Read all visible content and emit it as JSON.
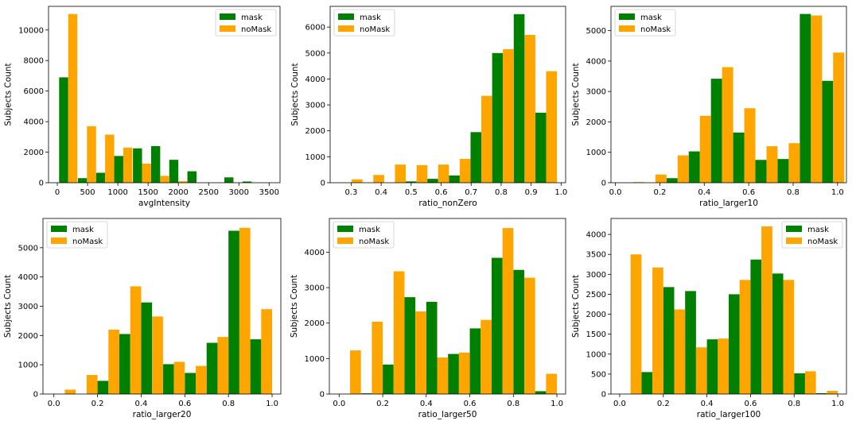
{
  "chart_data": [
    {
      "type": "bar",
      "xlabel": "avgIntensity",
      "ylabel": "Subjects Count",
      "legend_position": "top-right",
      "xlim": [
        -145,
        3680
      ],
      "ylim": [
        0,
        11550
      ],
      "xticks": [
        0,
        500,
        1000,
        1500,
        2000,
        2500,
        3000,
        3500
      ],
      "xtick_labels": [
        "0",
        "500",
        "1000",
        "1500",
        "2000",
        "2500",
        "3000",
        "3500"
      ],
      "yticks": [
        0,
        2000,
        4000,
        6000,
        8000,
        10000
      ],
      "ytick_labels": [
        "0",
        "2000",
        "4000",
        "6000",
        "8000",
        "10000"
      ],
      "bins": [
        [
          30,
          180,
          330
        ],
        [
          340,
          490,
          640
        ],
        [
          640,
          790,
          940
        ],
        [
          940,
          1090,
          1240
        ],
        [
          1250,
          1400,
          1550
        ],
        [
          1550,
          1700,
          1850
        ],
        [
          1850,
          2000,
          2150
        ],
        [
          2150,
          2300,
          2450
        ],
        [
          2450,
          2600,
          2750
        ],
        [
          2760,
          2910,
          3060
        ],
        [
          3060,
          3210,
          3360
        ],
        [
          3370,
          3520,
          3670
        ]
      ],
      "series": [
        {
          "name": "mask",
          "color": "#008000",
          "values": [
            6900,
            300,
            650,
            1750,
            2250,
            2400,
            1500,
            750,
            0,
            350,
            80,
            0
          ]
        },
        {
          "name": "noMask",
          "color": "#ffa500",
          "values": [
            11050,
            3700,
            3150,
            2300,
            1250,
            450,
            100,
            0,
            0,
            0,
            0,
            0
          ]
        }
      ]
    },
    {
      "type": "bar",
      "xlabel": "ratio_nonZero",
      "ylabel": "Subjects Count",
      "legend_position": "top-left",
      "xlim": [
        0.23,
        1.015
      ],
      "ylim": [
        0,
        6800
      ],
      "xticks": [
        0.3,
        0.4,
        0.5,
        0.6,
        0.7,
        0.8,
        0.9,
        1.0
      ],
      "xtick_labels": [
        "0.3",
        "0.4",
        "0.5",
        "0.6",
        "0.7",
        "0.8",
        "0.9",
        "1.0"
      ],
      "yticks": [
        0,
        1000,
        2000,
        3000,
        4000,
        5000,
        6000
      ],
      "ytick_labels": [
        "0",
        "1000",
        "2000",
        "3000",
        "4000",
        "5000",
        "6000"
      ],
      "bins": [
        [
          0.266,
          0.302,
          0.338
        ],
        [
          0.338,
          0.374,
          0.41
        ],
        [
          0.41,
          0.446,
          0.482
        ],
        [
          0.482,
          0.518,
          0.554
        ],
        [
          0.554,
          0.59,
          0.626
        ],
        [
          0.626,
          0.662,
          0.698
        ],
        [
          0.698,
          0.734,
          0.77
        ],
        [
          0.77,
          0.806,
          0.842
        ],
        [
          0.842,
          0.878,
          0.914
        ],
        [
          0.914,
          0.95,
          0.986
        ]
      ],
      "series": [
        {
          "name": "mask",
          "color": "#008000",
          "values": [
            0,
            0,
            0,
            50,
            150,
            280,
            1950,
            5000,
            6500,
            2700
          ]
        },
        {
          "name": "noMask",
          "color": "#ffa500",
          "values": [
            130,
            300,
            700,
            680,
            700,
            920,
            3350,
            5150,
            5700,
            4300
          ]
        }
      ]
    },
    {
      "type": "bar",
      "xlabel": "ratio_larger10",
      "ylabel": "Subjects Count",
      "legend_position": "top-left",
      "xlim": [
        -0.02,
        1.04
      ],
      "ylim": [
        0,
        5800
      ],
      "xticks": [
        0.0,
        0.2,
        0.4,
        0.6,
        0.8,
        1.0
      ],
      "xtick_labels": [
        "0.0",
        "0.2",
        "0.4",
        "0.6",
        "0.8",
        "1.0"
      ],
      "yticks": [
        0,
        1000,
        2000,
        3000,
        4000,
        5000
      ],
      "ytick_labels": [
        "0",
        "1000",
        "2000",
        "3000",
        "4000",
        "5000"
      ],
      "bins": [
        [
          0.03,
          0.08,
          0.13
        ],
        [
          0.13,
          0.18,
          0.23
        ],
        [
          0.23,
          0.28,
          0.33
        ],
        [
          0.33,
          0.38,
          0.43
        ],
        [
          0.43,
          0.48,
          0.53
        ],
        [
          0.53,
          0.58,
          0.63
        ],
        [
          0.63,
          0.68,
          0.73
        ],
        [
          0.73,
          0.78,
          0.83
        ],
        [
          0.83,
          0.88,
          0.93
        ],
        [
          0.93,
          0.98,
          1.03
        ]
      ],
      "series": [
        {
          "name": "mask",
          "color": "#008000",
          "values": [
            0,
            0,
            150,
            1030,
            3420,
            1650,
            750,
            780,
            5550,
            3350
          ]
        },
        {
          "name": "noMask",
          "color": "#ffa500",
          "values": [
            20,
            270,
            900,
            2200,
            3800,
            2450,
            1200,
            1300,
            5500,
            4280
          ]
        }
      ]
    },
    {
      "type": "bar",
      "xlabel": "ratio_larger20",
      "ylabel": "Subjects Count",
      "legend_position": "top-left",
      "xlim": [
        -0.05,
        1.04
      ],
      "ylim": [
        0,
        6000
      ],
      "xticks": [
        0.0,
        0.2,
        0.4,
        0.6,
        0.8,
        1.0
      ],
      "xtick_labels": [
        "0.0",
        "0.2",
        "0.4",
        "0.6",
        "0.8",
        "1.0"
      ],
      "yticks": [
        0,
        1000,
        2000,
        3000,
        4000,
        5000
      ],
      "ytick_labels": [
        "0",
        "1000",
        "2000",
        "3000",
        "4000",
        "5000"
      ],
      "bins": [
        [
          0.0,
          0.05,
          0.1
        ],
        [
          0.1,
          0.15,
          0.2
        ],
        [
          0.2,
          0.25,
          0.3
        ],
        [
          0.3,
          0.35,
          0.4
        ],
        [
          0.4,
          0.45,
          0.5
        ],
        [
          0.5,
          0.55,
          0.6
        ],
        [
          0.6,
          0.65,
          0.7
        ],
        [
          0.7,
          0.75,
          0.8
        ],
        [
          0.8,
          0.85,
          0.9
        ],
        [
          0.9,
          0.95,
          1.0
        ]
      ],
      "series": [
        {
          "name": "mask",
          "color": "#008000",
          "values": [
            0,
            0,
            450,
            2050,
            3130,
            1020,
            720,
            1750,
            5580,
            1870
          ]
        },
        {
          "name": "noMask",
          "color": "#ffa500",
          "values": [
            150,
            650,
            2200,
            3680,
            2650,
            1100,
            960,
            1950,
            5680,
            2900
          ]
        }
      ]
    },
    {
      "type": "bar",
      "xlabel": "ratio_larger50",
      "ylabel": "Subjects Count",
      "legend_position": "top-left",
      "xlim": [
        -0.045,
        1.04
      ],
      "ylim": [
        0,
        4950
      ],
      "xticks": [
        0.0,
        0.2,
        0.4,
        0.6,
        0.8,
        1.0
      ],
      "xtick_labels": [
        "0.0",
        "0.2",
        "0.4",
        "0.6",
        "0.8",
        "1.0"
      ],
      "yticks": [
        0,
        1000,
        2000,
        3000,
        4000
      ],
      "ytick_labels": [
        "0",
        "1000",
        "2000",
        "3000",
        "4000"
      ],
      "bins": [
        [
          0.0,
          0.05,
          0.1
        ],
        [
          0.1,
          0.15,
          0.2
        ],
        [
          0.2,
          0.25,
          0.3
        ],
        [
          0.3,
          0.35,
          0.4
        ],
        [
          0.4,
          0.45,
          0.5
        ],
        [
          0.5,
          0.55,
          0.6
        ],
        [
          0.6,
          0.65,
          0.7
        ],
        [
          0.7,
          0.75,
          0.8
        ],
        [
          0.8,
          0.85,
          0.9
        ],
        [
          0.9,
          0.95,
          1.0
        ]
      ],
      "series": [
        {
          "name": "mask",
          "color": "#008000",
          "values": [
            0,
            20,
            830,
            2730,
            2600,
            1130,
            1850,
            3840,
            3500,
            80
          ]
        },
        {
          "name": "noMask",
          "color": "#ffa500",
          "values": [
            1230,
            2040,
            3460,
            2330,
            1030,
            1170,
            2090,
            4680,
            3280,
            570
          ]
        }
      ]
    },
    {
      "type": "bar",
      "xlabel": "ratio_larger100",
      "ylabel": "Subjects Count",
      "legend_position": "top-right",
      "xlim": [
        -0.04,
        1.04
      ],
      "ylim": [
        0,
        4400
      ],
      "xticks": [
        0.0,
        0.2,
        0.4,
        0.6,
        0.8,
        1.0
      ],
      "xtick_labels": [
        "0.0",
        "0.2",
        "0.4",
        "0.6",
        "0.8",
        "1.0"
      ],
      "yticks": [
        0,
        500,
        1000,
        1500,
        2000,
        2500,
        3000,
        3500,
        4000
      ],
      "ytick_labels": [
        "0",
        "500",
        "1000",
        "1500",
        "2000",
        "2500",
        "3000",
        "3500",
        "4000"
      ],
      "bins": [
        [
          0.0,
          0.05,
          0.1
        ],
        [
          0.1,
          0.15,
          0.2
        ],
        [
          0.2,
          0.25,
          0.3
        ],
        [
          0.3,
          0.35,
          0.4
        ],
        [
          0.4,
          0.45,
          0.5
        ],
        [
          0.5,
          0.55,
          0.6
        ],
        [
          0.6,
          0.65,
          0.7
        ],
        [
          0.7,
          0.75,
          0.8
        ],
        [
          0.8,
          0.85,
          0.9
        ],
        [
          0.9,
          0.95,
          1.0
        ]
      ],
      "series": [
        {
          "name": "mask",
          "color": "#008000",
          "values": [
            0,
            550,
            2680,
            2580,
            1370,
            2500,
            3370,
            3020,
            520,
            20
          ]
        },
        {
          "name": "noMask",
          "color": "#ffa500",
          "values": [
            3500,
            3170,
            2120,
            1170,
            1390,
            2860,
            4200,
            2860,
            570,
            80
          ]
        }
      ]
    }
  ]
}
